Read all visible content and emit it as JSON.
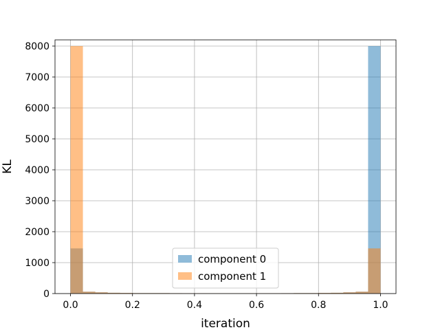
{
  "chart_data": {
    "type": "bar",
    "title": "",
    "xlabel": "iteration",
    "ylabel": "KL",
    "xlim": [
      -0.05,
      1.05
    ],
    "ylim": [
      0,
      8200
    ],
    "xticks": [
      0.0,
      0.2,
      0.4,
      0.6,
      0.8,
      1.0
    ],
    "xtick_labels": [
      "0.0",
      "0.2",
      "0.4",
      "0.6",
      "0.8",
      "1.0"
    ],
    "yticks": [
      0,
      1000,
      2000,
      3000,
      4000,
      5000,
      6000,
      7000,
      8000
    ],
    "ytick_labels": [
      "0",
      "1000",
      "2000",
      "3000",
      "4000",
      "5000",
      "6000",
      "7000",
      "8000"
    ],
    "grid": true,
    "bin_edges": [
      0.0,
      0.04,
      0.08,
      0.12,
      0.16,
      0.2,
      0.24,
      0.28,
      0.32,
      0.36,
      0.4,
      0.44,
      0.48,
      0.52,
      0.56,
      0.6,
      0.64,
      0.68,
      0.72,
      0.76,
      0.8,
      0.84,
      0.88,
      0.92,
      0.96,
      1.0
    ],
    "series": [
      {
        "name": "component 0",
        "color": "#1f77b4",
        "opacity": 0.5,
        "values": [
          1460,
          60,
          40,
          25,
          20,
          15,
          15,
          15,
          12,
          10,
          10,
          8,
          8,
          8,
          8,
          10,
          10,
          12,
          15,
          15,
          20,
          25,
          40,
          60,
          8000
        ]
      },
      {
        "name": "component 1",
        "color": "#ff7f0e",
        "opacity": 0.5,
        "values": [
          8000,
          60,
          40,
          25,
          20,
          15,
          15,
          15,
          12,
          10,
          10,
          8,
          8,
          8,
          8,
          10,
          10,
          12,
          15,
          15,
          20,
          25,
          40,
          60,
          1460
        ]
      }
    ],
    "legend_position": "lower-center"
  }
}
